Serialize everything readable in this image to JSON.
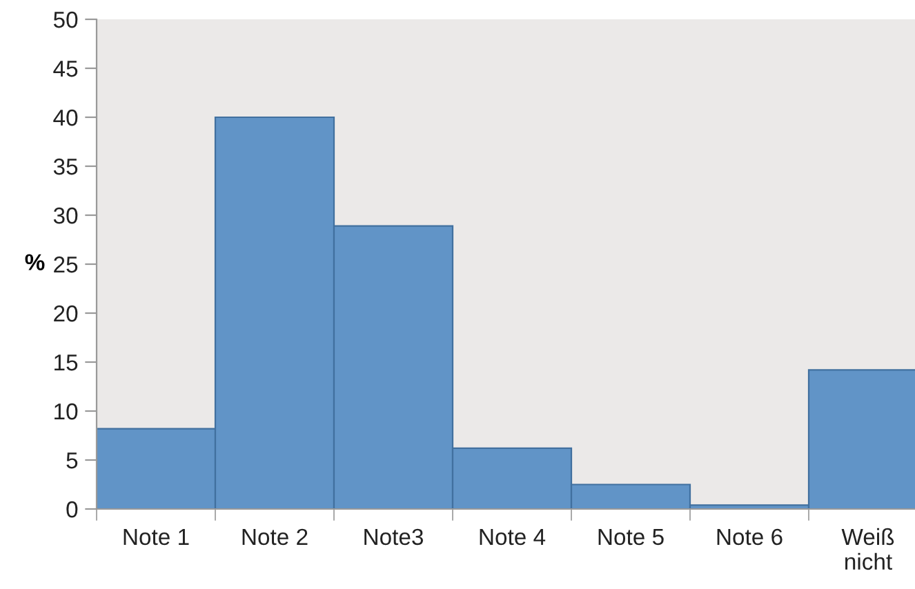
{
  "chart_data": {
    "type": "bar",
    "ylabel": "%",
    "categories": [
      "Note 1",
      "Note 2",
      "Note3",
      "Note 4",
      "Note 5",
      "Note 6",
      "Weiß\nnicht"
    ],
    "series": [
      {
        "color": "#6194c7",
        "values": [
          8.2,
          40,
          28.9,
          6.2,
          2.5,
          0.4,
          14.2
        ]
      }
    ],
    "ylim": [
      0,
      50
    ],
    "yticks": [
      0,
      5,
      10,
      15,
      20,
      25,
      30,
      35,
      40,
      45,
      50
    ],
    "grid": false,
    "legend": false
  }
}
